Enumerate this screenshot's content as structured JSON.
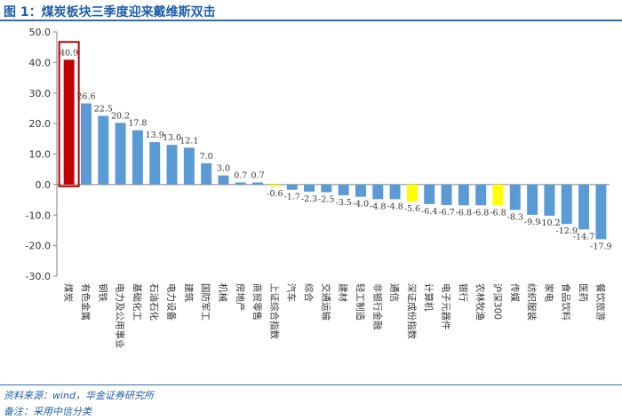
{
  "figure": {
    "title": "图 1：煤炭板块三季度迎来戴维斯双击",
    "source": "资料来源：wind，华金证券研究所",
    "remark": "备注：采用中信分类"
  },
  "colors": {
    "default_bar": "#5b9bd5",
    "highlight_bar": "#c00000",
    "index_bar": "#ffff00",
    "title": "#1f5ea8",
    "highlight_box": "#c00000"
  },
  "chart_data": {
    "type": "bar",
    "categories": [
      "煤炭",
      "有色金属",
      "钢铁",
      "电力及公用事业",
      "基础化工",
      "石油石化",
      "电力设备",
      "建筑",
      "国防军工",
      "机械",
      "房地产",
      "商贸零售",
      "上证综合指数",
      "汽车",
      "综合",
      "交通运输",
      "建材",
      "轻工制造",
      "非银行金融",
      "通信",
      "深证成份指数",
      "计算机",
      "电子元器件",
      "银行",
      "农林牧渔",
      "沪深300",
      "传媒",
      "纺织服装",
      "家电",
      "食品饮料",
      "医药",
      "餐饮旅游"
    ],
    "values": [
      40.9,
      26.6,
      22.5,
      20.2,
      17.8,
      13.9,
      13.0,
      12.1,
      7.0,
      3.0,
      0.7,
      0.7,
      -0.6,
      -1.7,
      -2.3,
      -2.5,
      -3.5,
      -4.0,
      -4.8,
      -4.8,
      -5.6,
      -6.4,
      -6.7,
      -6.8,
      -6.8,
      -6.8,
      -8.3,
      -9.9,
      -10.2,
      -12.9,
      -14.7,
      -17.9
    ],
    "value_labels": [
      "40.9",
      "26.6",
      "22.5",
      "20.2",
      "17.8",
      "13.9",
      "13.0",
      "12.1",
      "7.0",
      "3.0",
      "0.7",
      "0.7",
      "-0.6",
      "-1.7",
      "-2.3",
      "-2.5",
      "-3.5",
      "-4.0",
      "-4.8",
      "-4.8",
      "-5.6",
      "-6.4",
      "-6.7",
      "-6.8",
      "-6.8",
      "-6.8",
      "-8.3",
      "-9.9",
      "-10.2",
      "-12.9",
      "-14.7",
      "-17.9"
    ],
    "highlight": [
      "煤炭"
    ],
    "index_categories": [
      "上证综合指数",
      "深证成份指数",
      "沪深300"
    ],
    "ylim": [
      -30,
      50
    ],
    "yticks": [
      "50.0",
      "40.0",
      "30.0",
      "20.0",
      "10.0",
      "0.0",
      "-10.0",
      "-20.0",
      "-30.0"
    ],
    "grid": false,
    "legend": "none",
    "title": "",
    "xlabel": "",
    "ylabel": ""
  }
}
